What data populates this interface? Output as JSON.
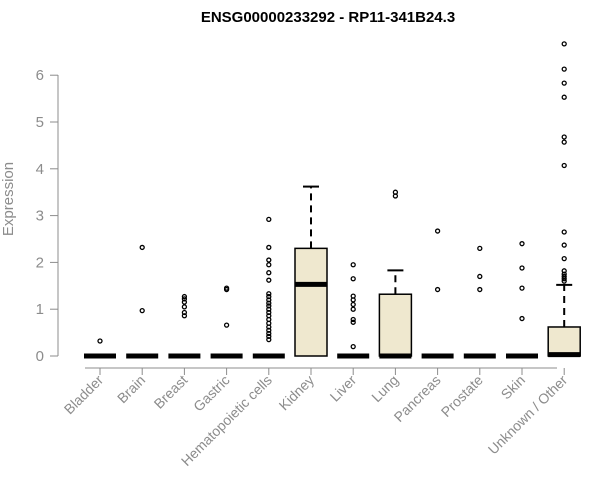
{
  "chart_data": {
    "type": "box",
    "title": "ENSG00000233292 - RP11-341B24.3",
    "xlabel": "",
    "ylabel": "Expression",
    "ylim": [
      0,
      6.7
    ],
    "yticks": [
      0,
      1,
      2,
      3,
      4,
      5,
      6
    ],
    "box_fill": "#efe8cf",
    "categories": [
      "Bladder",
      "Brain",
      "Breast",
      "Gastric",
      "Hematopoietic cells",
      "Kidney",
      "Liver",
      "Lung",
      "Pancreas",
      "Prostate",
      "Skin",
      "Unknown / Other"
    ],
    "boxes": [
      {
        "q1": 0,
        "median": 0,
        "q3": 0,
        "whisker_low": 0,
        "whisker_high": 0,
        "outliers": [
          0.32
        ]
      },
      {
        "q1": 0,
        "median": 0,
        "q3": 0,
        "whisker_low": 0,
        "whisker_high": 0,
        "outliers": [
          0.97,
          2.32
        ]
      },
      {
        "q1": 0,
        "median": 0,
        "q3": 0,
        "whisker_low": 0,
        "whisker_high": 0,
        "outliers": [
          0.86,
          0.93,
          1.05,
          1.15,
          1.22,
          1.27
        ]
      },
      {
        "q1": 0,
        "median": 0,
        "q3": 0,
        "whisker_low": 0,
        "whisker_high": 0,
        "outliers": [
          0.66,
          1.42,
          1.45
        ]
      },
      {
        "q1": 0,
        "median": 0,
        "q3": 0,
        "whisker_low": 0,
        "whisker_high": 0,
        "outliers": [
          0.35,
          0.42,
          0.48,
          0.55,
          0.62,
          0.7,
          0.78,
          0.86,
          0.93,
          1.0,
          1.07,
          1.13,
          1.2,
          1.27,
          1.33,
          1.62,
          1.78,
          1.95,
          2.05,
          2.32,
          2.92
        ]
      },
      {
        "q1": 0,
        "median": 1.53,
        "q3": 2.3,
        "whisker_low": 0,
        "whisker_high": 3.62,
        "outliers": []
      },
      {
        "q1": 0,
        "median": 0,
        "q3": 0,
        "whisker_low": 0,
        "whisker_high": 0,
        "outliers": [
          0.2,
          0.72,
          0.78,
          1.0,
          1.1,
          1.2,
          1.28,
          1.65,
          1.95
        ]
      },
      {
        "q1": 0,
        "median": 0,
        "q3": 1.32,
        "whisker_low": 0,
        "whisker_high": 1.83,
        "outliers": [
          3.42,
          3.5
        ]
      },
      {
        "q1": 0,
        "median": 0,
        "q3": 0,
        "whisker_low": 0,
        "whisker_high": 0,
        "outliers": [
          1.42,
          2.67
        ]
      },
      {
        "q1": 0,
        "median": 0,
        "q3": 0,
        "whisker_low": 0,
        "whisker_high": 0,
        "outliers": [
          1.42,
          1.7,
          2.3
        ]
      },
      {
        "q1": 0,
        "median": 0,
        "q3": 0,
        "whisker_low": 0,
        "whisker_high": 0,
        "outliers": [
          0.8,
          1.45,
          1.88,
          2.4
        ]
      },
      {
        "q1": 0,
        "median": 0.03,
        "q3": 0.62,
        "whisker_low": 0,
        "whisker_high": 1.52,
        "outliers": [
          1.6,
          1.65,
          1.7,
          1.75,
          1.82,
          2.08,
          2.37,
          2.65,
          4.07,
          4.57,
          4.68,
          5.53,
          5.83,
          6.13,
          6.67
        ]
      }
    ]
  }
}
